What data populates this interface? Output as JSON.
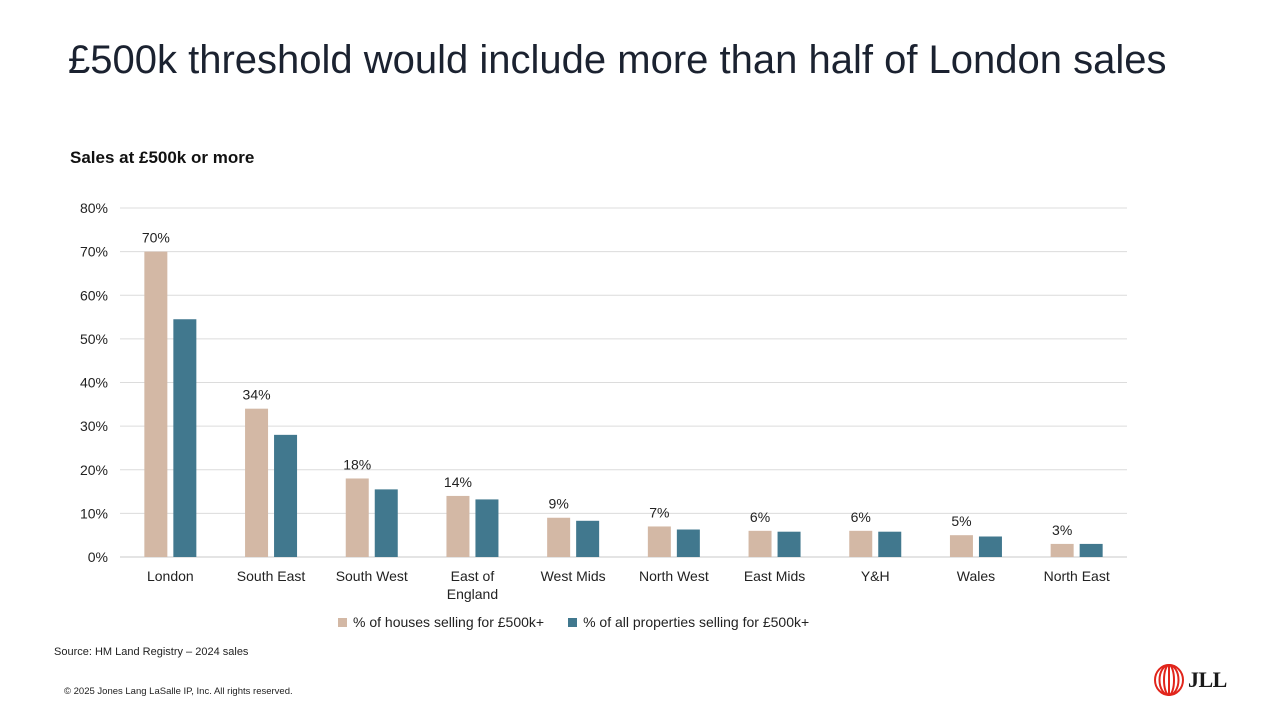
{
  "slide": {
    "title": "£500k threshold would include more than half of London sales",
    "source": "Source: HM Land Registry – 2024 sales",
    "copyright": "© 2025 Jones Lang LaSalle IP, Inc. All rights reserved.",
    "logo_text": "JLL"
  },
  "chart_data": {
    "type": "bar",
    "title": "Sales at £500k or more",
    "categories": [
      "London",
      "South East",
      "South West",
      "East of\nEngland",
      "West Mids",
      "North West",
      "East Mids",
      "Y&H",
      "Wales",
      "North East"
    ],
    "series": [
      {
        "name": "% of houses selling for £500k+",
        "color": "#d3b8a5",
        "values": [
          70,
          34,
          18,
          14,
          9,
          7,
          6,
          6,
          5,
          3
        ],
        "data_labels": [
          "70%",
          "34%",
          "18%",
          "14%",
          "9%",
          "7%",
          "6%",
          "6%",
          "5%",
          "3%"
        ]
      },
      {
        "name": "% of all properties selling for £500k+",
        "color": "#41788e",
        "values": [
          54.5,
          28,
          15.5,
          13.2,
          8.3,
          6.3,
          5.8,
          5.8,
          4.7,
          3.0
        ]
      }
    ],
    "yticks": [
      "0%",
      "10%",
      "20%",
      "30%",
      "40%",
      "50%",
      "60%",
      "70%",
      "80%"
    ],
    "ylim": [
      0,
      80
    ],
    "grid": true,
    "legend_position": "bottom"
  },
  "colors": {
    "logo_red": "#e1251b"
  }
}
